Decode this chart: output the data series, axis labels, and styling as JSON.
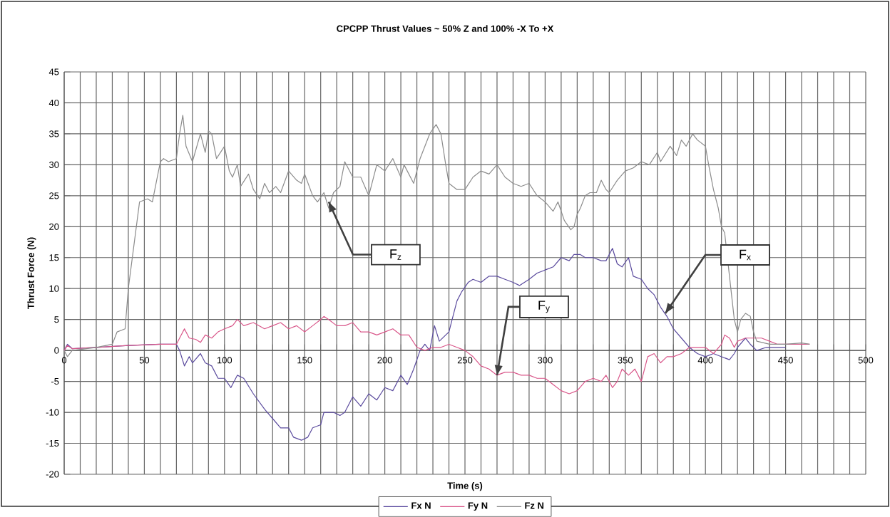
{
  "chart_data": {
    "type": "line",
    "title": "CPCPP Thrust Values ~ 50% Z and 100% -X To +X",
    "xlabel": "Time (s)",
    "ylabel": "Thrust Force (N)",
    "xlim": [
      0,
      500
    ],
    "ylim": [
      -20,
      45
    ],
    "xticks": [
      0,
      {
        "value": 10,
        "label": null
      },
      {
        "value": 20,
        "label": null
      },
      {
        "value": 30,
        "label": null
      },
      {
        "value": 40,
        "label": null
      },
      50,
      {
        "value": 60,
        "label": null
      },
      {
        "value": 70,
        "label": null
      },
      {
        "value": 80,
        "label": null
      },
      {
        "value": 90,
        "label": null
      },
      100,
      {
        "value": 110,
        "label": null
      },
      {
        "value": 120,
        "label": null
      },
      {
        "value": 130,
        "label": null
      },
      {
        "value": 140,
        "label": null
      },
      150,
      {
        "value": 160,
        "label": null
      },
      {
        "value": 170,
        "label": null
      },
      {
        "value": 180,
        "label": null
      },
      {
        "value": 190,
        "label": null
      },
      200,
      {
        "value": 210,
        "label": null
      },
      {
        "value": 220,
        "label": null
      },
      {
        "value": 230,
        "label": null
      },
      {
        "value": 240,
        "label": null
      },
      250,
      {
        "value": 260,
        "label": null
      },
      {
        "value": 270,
        "label": null
      },
      {
        "value": 280,
        "label": null
      },
      {
        "value": 290,
        "label": null
      },
      300,
      {
        "value": 310,
        "label": null
      },
      {
        "value": 320,
        "label": null
      },
      {
        "value": 330,
        "label": null
      },
      {
        "value": 340,
        "label": null
      },
      350,
      {
        "value": 360,
        "label": null
      },
      {
        "value": 370,
        "label": null
      },
      {
        "value": 380,
        "label": null
      },
      {
        "value": 390,
        "label": null
      },
      400,
      {
        "value": 410,
        "label": null
      },
      {
        "value": 420,
        "label": null
      },
      {
        "value": 430,
        "label": null
      },
      {
        "value": 440,
        "label": null
      },
      450,
      {
        "value": 460,
        "label": null
      },
      {
        "value": 470,
        "label": null
      },
      {
        "value": 480,
        "label": null
      },
      {
        "value": 490,
        "label": null
      },
      500
    ],
    "yticks": [
      -20,
      -15,
      -10,
      -5,
      0,
      5,
      10,
      15,
      20,
      25,
      30,
      35,
      40,
      45
    ],
    "grid": true,
    "legend": "bottom",
    "marker": "none",
    "line_style": "solid",
    "series": [
      {
        "name": "Fx N",
        "color": "#5b4b9e",
        "x": [
          0,
          2,
          5,
          20,
          40,
          60,
          70,
          72,
          75,
          78,
          80,
          85,
          88,
          92,
          96,
          100,
          104,
          108,
          112,
          118,
          125,
          130,
          135,
          140,
          143,
          148,
          152,
          155,
          160,
          162,
          168,
          172,
          175,
          180,
          185,
          190,
          195,
          200,
          205,
          210,
          214,
          218,
          222,
          225,
          228,
          231,
          234,
          238,
          240,
          242,
          245,
          248,
          252,
          255,
          260,
          265,
          270,
          275,
          280,
          284,
          290,
          295,
          300,
          305,
          310,
          315,
          318,
          322,
          325,
          330,
          335,
          338,
          342,
          345,
          348,
          352,
          355,
          360,
          364,
          368,
          372,
          376,
          380,
          385,
          390,
          395,
          400,
          405,
          410,
          415,
          418,
          420,
          425,
          428,
          432,
          438,
          445,
          450
        ],
        "values": [
          0,
          1,
          0.3,
          0.5,
          0.8,
          1,
          1,
          0,
          -2.5,
          -1,
          -2,
          -0.5,
          -2,
          -2.5,
          -4.5,
          -4.5,
          -6,
          -4,
          -4.5,
          -7,
          -9.5,
          -11,
          -12.5,
          -12.5,
          -14,
          -14.5,
          -14,
          -12.5,
          -12,
          -10,
          -10,
          -10.5,
          -10,
          -7.5,
          -9,
          -7,
          -8,
          -6,
          -6.5,
          -4,
          -5.5,
          -3,
          0,
          1,
          0,
          4,
          1.5,
          2.5,
          3,
          5,
          8,
          9.5,
          11,
          11.5,
          11,
          12,
          12,
          11.5,
          11,
          10.5,
          11.5,
          12.5,
          13,
          13.5,
          15,
          14.5,
          15.5,
          15.5,
          15,
          15,
          14.5,
          14.5,
          16.5,
          14,
          13.5,
          15,
          12,
          11.5,
          10,
          9,
          7,
          5.5,
          3.5,
          2,
          0.5,
          -0.5,
          -1,
          -0.5,
          -1,
          -1.5,
          -0.5,
          0.5,
          2,
          1,
          0,
          0.5,
          0.5,
          0.5
        ]
      },
      {
        "name": "Fy N",
        "color": "#d9578a",
        "x": [
          0,
          2,
          5,
          20,
          40,
          60,
          70,
          72,
          75,
          78,
          82,
          85,
          88,
          92,
          96,
          100,
          105,
          108,
          112,
          118,
          125,
          130,
          135,
          140,
          145,
          150,
          155,
          160,
          162,
          165,
          170,
          175,
          180,
          185,
          190,
          195,
          200,
          205,
          210,
          215,
          220,
          225,
          230,
          235,
          240,
          245,
          250,
          255,
          260,
          265,
          270,
          275,
          280,
          285,
          290,
          295,
          300,
          305,
          310,
          315,
          320,
          325,
          330,
          335,
          338,
          342,
          345,
          348,
          352,
          356,
          360,
          364,
          368,
          372,
          376,
          380,
          385,
          390,
          395,
          400,
          405,
          410,
          412,
          415,
          418,
          420,
          425,
          430,
          435,
          440,
          445,
          450,
          460,
          465
        ],
        "values": [
          0,
          0.8,
          0.3,
          0.5,
          0.8,
          1,
          1,
          2,
          3.5,
          2,
          1.8,
          1.3,
          2.5,
          2,
          3,
          3.5,
          4,
          5,
          4,
          4.5,
          3.5,
          4,
          4.5,
          3.5,
          4,
          3,
          4,
          5,
          5.5,
          5,
          4,
          4,
          4.5,
          3,
          3,
          2.5,
          3,
          3.5,
          2.5,
          2.5,
          0.5,
          0,
          0.5,
          0.5,
          1,
          0.5,
          0,
          -1,
          -2.5,
          -3,
          -4,
          -3.5,
          -3.5,
          -4,
          -4,
          -4.5,
          -4.5,
          -5.5,
          -6.5,
          -7,
          -6.5,
          -5,
          -4.5,
          -5,
          -4,
          -6,
          -5,
          -3,
          -4,
          -3,
          -5,
          -1,
          -0.5,
          -2,
          -1,
          -1,
          -0.5,
          0.5,
          0.5,
          0.5,
          -0.5,
          1,
          2.5,
          2,
          0.5,
          1.5,
          2,
          2,
          2,
          1.5,
          1,
          1,
          1,
          1
        ]
      },
      {
        "name": "Fz N",
        "color": "#8c8c8c",
        "x": [
          0,
          2,
          5,
          20,
          30,
          33,
          38,
          40,
          45,
          47,
          52,
          55,
          60,
          62,
          65,
          70,
          72,
          74,
          76,
          80,
          85,
          88,
          90,
          92,
          95,
          100,
          103,
          105,
          108,
          110,
          115,
          118,
          122,
          125,
          128,
          132,
          135,
          140,
          145,
          148,
          150,
          155,
          158,
          162,
          165,
          168,
          172,
          175,
          178,
          180,
          185,
          190,
          195,
          200,
          205,
          210,
          212,
          215,
          218,
          222,
          225,
          228,
          232,
          235,
          238,
          240,
          245,
          250,
          255,
          260,
          265,
          270,
          275,
          280,
          285,
          290,
          295,
          300,
          305,
          308,
          312,
          316,
          318,
          320,
          322,
          325,
          328,
          332,
          335,
          338,
          340,
          345,
          350,
          355,
          360,
          365,
          370,
          372,
          378,
          382,
          385,
          388,
          392,
          395,
          400,
          402,
          405,
          408,
          410,
          412,
          415,
          418,
          420,
          422,
          425,
          428,
          430,
          432,
          440,
          450,
          460,
          465
        ],
        "values": [
          0,
          -1,
          0,
          0.5,
          1,
          3,
          3.5,
          10,
          20,
          24,
          24.5,
          24,
          30.5,
          31,
          30.5,
          31,
          35,
          38,
          33,
          30.5,
          35,
          32,
          35.5,
          35,
          31,
          33,
          29,
          28,
          30,
          26.5,
          28.5,
          26,
          24.5,
          27,
          25.5,
          26.5,
          25.5,
          29,
          27.5,
          27,
          28.5,
          25,
          24,
          25.5,
          23,
          25.5,
          26.5,
          30.5,
          29,
          28,
          28,
          25,
          30,
          29,
          31,
          28,
          30,
          28.5,
          27,
          31,
          33,
          35,
          36.5,
          35,
          30,
          27,
          26,
          26,
          28,
          29,
          28.5,
          30,
          28,
          27,
          26.5,
          27,
          25,
          24,
          22.5,
          24,
          21,
          19.5,
          20,
          22,
          23,
          25,
          25.5,
          25.5,
          27.5,
          26,
          25.5,
          27.5,
          29,
          29.5,
          30.5,
          30,
          32,
          30.5,
          33,
          31.5,
          34,
          33,
          35,
          34,
          33,
          30,
          26,
          23,
          20,
          19,
          12,
          5,
          3,
          5,
          6,
          5.5,
          3,
          1.5,
          1,
          1,
          1.2,
          1
        ]
      }
    ],
    "annotations": [
      {
        "text": "F$_{z}$",
        "x": 165,
        "y": 24
      },
      {
        "text": "F$_{x}$",
        "x": 375,
        "y": 6
      },
      {
        "text": "F$_{y}$",
        "x": 270,
        "y": -4
      }
    ]
  }
}
